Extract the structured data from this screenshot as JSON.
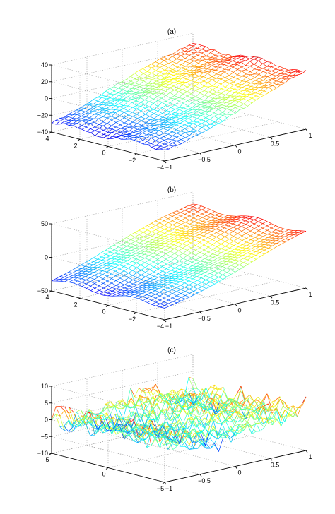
{
  "chart_data": [
    {
      "type": "surface",
      "title": "(a)",
      "xlim": [
        -1,
        1
      ],
      "ylim": [
        -4,
        4
      ],
      "zlim": [
        -40,
        40
      ],
      "xticks": [
        "−1",
        "−0.5",
        "0",
        "0.5",
        "1"
      ],
      "yticks": [
        "4",
        "2",
        "0",
        "−2",
        "−4"
      ],
      "zticks": [
        "40",
        "20",
        "0",
        "−20",
        "−40"
      ],
      "grid": true,
      "colormap": "jet",
      "surface": {
        "slope": 26,
        "wave_amp": 5,
        "noise_amp": 1.2
      }
    },
    {
      "type": "surface",
      "title": "(b)",
      "xlim": [
        -1,
        1
      ],
      "ylim": [
        -4,
        4
      ],
      "zlim": [
        -50,
        50
      ],
      "xticks": [
        "−1",
        "−0.5",
        "0",
        "0.5",
        "1"
      ],
      "yticks": [
        "4",
        "2",
        "0",
        "−2",
        "−4"
      ],
      "zticks": [
        "50",
        "0",
        "−50"
      ],
      "grid": true,
      "colormap": "jet",
      "surface": {
        "slope": 30,
        "wave_amp": 7,
        "noise_amp": 0.3
      }
    },
    {
      "type": "surface",
      "title": "(c)",
      "xlim": [
        -1,
        1
      ],
      "ylim": [
        -5,
        5
      ],
      "zlim": [
        -10,
        10
      ],
      "xticks": [
        "−1",
        "−0.5",
        "0",
        "0.5",
        "1"
      ],
      "yticks": [
        "5",
        "0",
        "−5"
      ],
      "zticks": [
        "10",
        "5",
        "0",
        "−5",
        "−10"
      ],
      "grid": true,
      "colormap": "jet",
      "surface": {
        "slope": 0,
        "wave_amp": 3,
        "noise_amp": 2.2
      }
    }
  ]
}
